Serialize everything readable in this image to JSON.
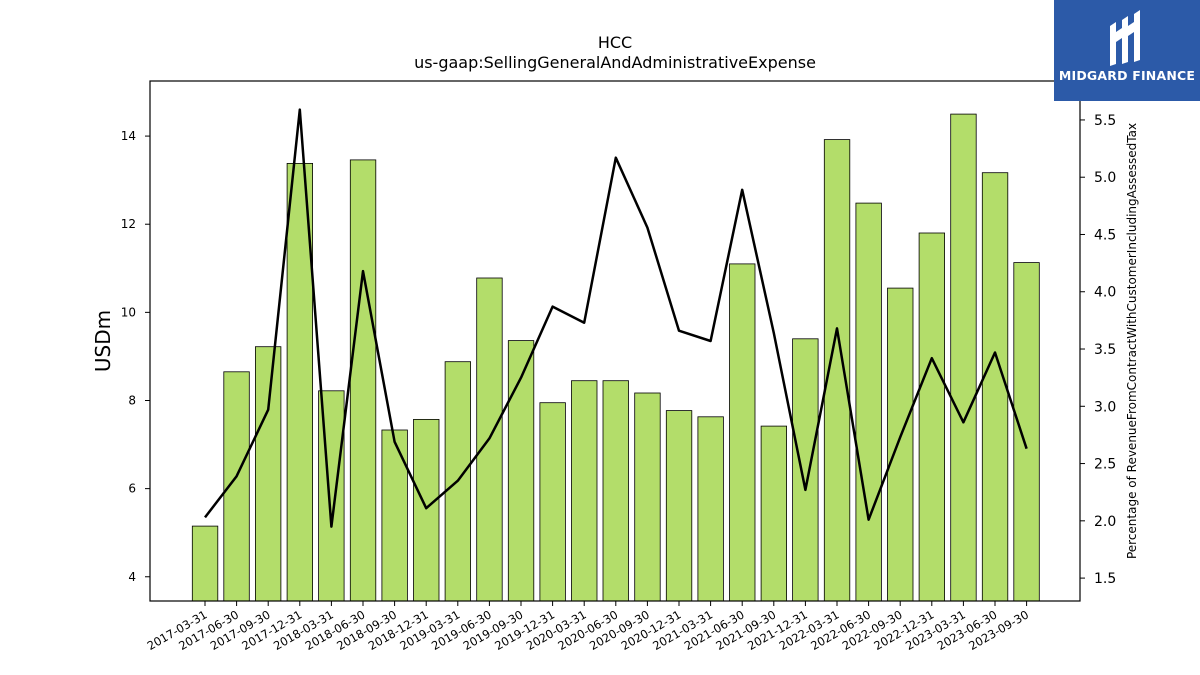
{
  "chart_data": {
    "type": "bar+line",
    "title": "HCC",
    "subtitle": "us-gaap:SellingGeneralAndAdministrativeExpense",
    "ylabel": "USDm",
    "y2label": "Percentage of RevenueFromContractWithCustomerIncludingAssessedTax",
    "ylim": [
      3.45,
      15.25
    ],
    "y2lim": [
      1.3,
      5.84
    ],
    "yticks": [
      4,
      6,
      8,
      10,
      12,
      14
    ],
    "y2ticks": [
      "1.5",
      "2.0",
      "2.5",
      "3.0",
      "3.5",
      "4.0",
      "4.5",
      "5.0",
      "5.5"
    ],
    "categories": [
      "2017-03-31",
      "2017-06-30",
      "2017-09-30",
      "2017-12-31",
      "2018-03-31",
      "2018-06-30",
      "2018-09-30",
      "2018-12-31",
      "2019-03-31",
      "2019-06-30",
      "2019-09-30",
      "2019-12-31",
      "2020-03-31",
      "2020-06-30",
      "2020-09-30",
      "2020-12-31",
      "2021-03-31",
      "2021-06-30",
      "2021-09-30",
      "2021-12-31",
      "2022-03-31",
      "2022-06-30",
      "2022-09-30",
      "2022-12-31",
      "2023-03-31",
      "2023-06-30",
      "2023-09-30"
    ],
    "series": [
      {
        "type": "bar",
        "axis": "left",
        "color": "#b3dd6a",
        "values": [
          5.15,
          8.65,
          9.22,
          13.38,
          8.22,
          13.46,
          7.33,
          7.57,
          8.88,
          10.78,
          9.36,
          7.95,
          8.45,
          8.45,
          8.17,
          7.77,
          7.63,
          11.1,
          7.42,
          9.4,
          13.92,
          12.48,
          10.55,
          11.8,
          14.5,
          13.17,
          11.13
        ]
      },
      {
        "type": "line",
        "axis": "right",
        "color": "#000000",
        "values": [
          2.03,
          2.39,
          2.97,
          5.59,
          1.95,
          4.18,
          2.69,
          2.11,
          2.35,
          2.72,
          3.25,
          3.87,
          3.73,
          5.17,
          4.56,
          3.66,
          3.57,
          4.89,
          3.64,
          2.27,
          3.68,
          2.01,
          2.73,
          3.42,
          2.86,
          3.47,
          2.63
        ]
      }
    ]
  },
  "logo": {
    "text": "MIDGARD FINANCE",
    "bg_color": "#2c5aa8"
  }
}
